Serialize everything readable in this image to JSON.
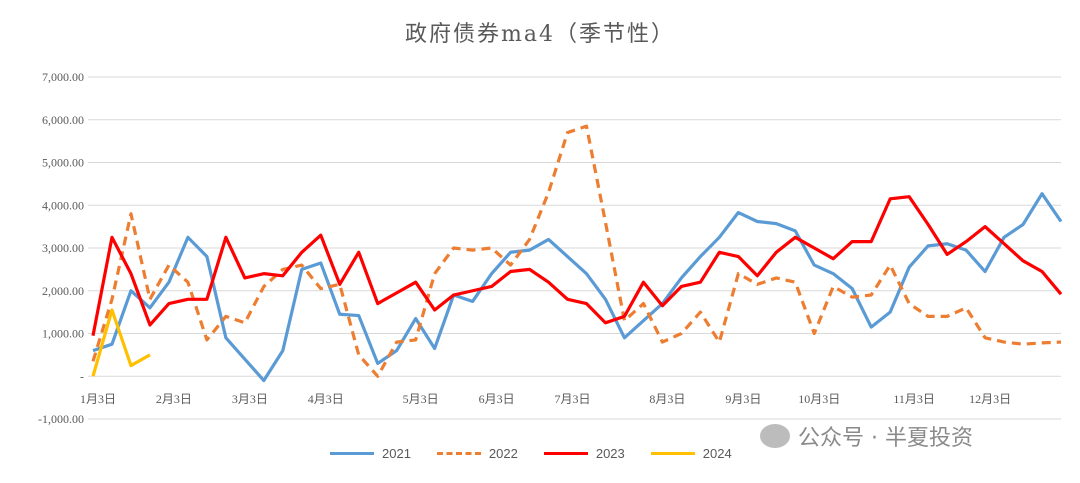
{
  "chart_data": {
    "type": "line",
    "title": "政府债券ma4（季节性）",
    "xlabel": "",
    "ylabel": "",
    "ylim": [
      -1000,
      7000
    ],
    "yticks": [
      "7,000.00",
      "6,000.00",
      "5,000.00",
      "4,000.00",
      "3,000.00",
      "2,000.00",
      "1,000.00",
      "-",
      "-1,000.00"
    ],
    "ytick_values": [
      7000,
      6000,
      5000,
      4000,
      3000,
      2000,
      1000,
      0,
      -1000
    ],
    "xticks": [
      "1月3日",
      "2月3日",
      "3月3日",
      "4月3日",
      "5月3日",
      "6月3日",
      "7月3日",
      "8月3日",
      "9月3日",
      "10月3日",
      "11月3日",
      "12月3日"
    ],
    "xtick_weeks": [
      0,
      4,
      8,
      12,
      17,
      21,
      25,
      30,
      34,
      38,
      43,
      47
    ],
    "grid": true,
    "legend_position": "bottom",
    "series": [
      {
        "name": "2021",
        "color": "#5B9BD5",
        "dash": false,
        "values": [
          600,
          750,
          2000,
          1600,
          2200,
          3250,
          2800,
          900,
          400,
          -100,
          600,
          2500,
          2650,
          1450,
          1420,
          300,
          600,
          1350,
          650,
          1900,
          1750,
          2400,
          2900,
          2950,
          3200,
          2800,
          2400,
          1800,
          900,
          1300,
          1700,
          2300,
          2800,
          3250,
          3830,
          3620,
          3570,
          3400,
          2600,
          2400,
          2050,
          1150,
          1500,
          2550,
          3050,
          3100,
          2950,
          2450,
          3250,
          3550,
          4270,
          3620
        ]
      },
      {
        "name": "2022",
        "color": "#ED7D31",
        "dash": true,
        "values": [
          350,
          1800,
          3800,
          1800,
          2600,
          2200,
          850,
          1400,
          1250,
          2100,
          2500,
          2600,
          2050,
          2150,
          500,
          0,
          800,
          850,
          2400,
          3000,
          2950,
          3000,
          2600,
          3200,
          4300,
          5700,
          5850,
          3600,
          1300,
          1700,
          800,
          1000,
          1500,
          800,
          2400,
          2150,
          2300,
          2200,
          1000,
          2100,
          1850,
          1900,
          2600,
          1700,
          1400,
          1400,
          1600,
          900,
          800,
          750,
          780,
          800
        ]
      },
      {
        "name": "2023",
        "color": "#FF0000",
        "dash": false,
        "values": [
          950,
          3250,
          2400,
          1200,
          1700,
          1800,
          1800,
          3250,
          2300,
          2400,
          2350,
          2900,
          3300,
          2150,
          2900,
          1700,
          1950,
          2200,
          1550,
          1900,
          2000,
          2100,
          2450,
          2500,
          2200,
          1800,
          1700,
          1250,
          1400,
          2200,
          1650,
          2100,
          2200,
          2900,
          2800,
          2350,
          2900,
          3250,
          3000,
          2750,
          3150,
          3150,
          4150,
          4200,
          3550,
          2850,
          3150,
          3500,
          3100,
          2700,
          2450,
          1920
        ]
      },
      {
        "name": "2024",
        "color": "#FFC000",
        "dash": false,
        "values": [
          0,
          1550,
          250,
          500
        ]
      }
    ]
  },
  "watermark": "公众号 · 半夏投资"
}
